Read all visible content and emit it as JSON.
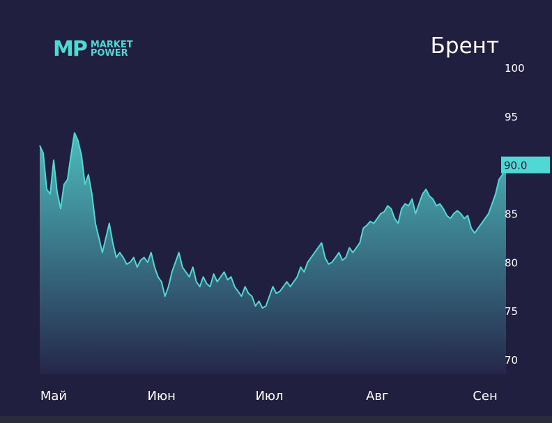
{
  "logo": {
    "mark": "MP",
    "line1": "MARKET",
    "line2": "POWER"
  },
  "colors": {
    "background": "#211f3f",
    "accent": "#4fd8d4",
    "fill_top": "#4ec3c2",
    "fill_bottom": "#25264a",
    "label_badge_text": "#1b1d3a",
    "tick_text": "#ffffff"
  },
  "chart_data": {
    "type": "area",
    "title": "Брент",
    "xlabel": "",
    "ylabel": "",
    "ylim": [
      68.5,
      100
    ],
    "yticks": [
      70,
      75,
      80,
      85,
      90,
      95,
      100
    ],
    "ytick_labels": [
      "70",
      "75",
      "80",
      "85",
      "90",
      "95",
      "100"
    ],
    "xticks": [
      {
        "label": "Май",
        "at": 4
      },
      {
        "label": "Июн",
        "at": 35
      },
      {
        "label": "Июл",
        "at": 66
      },
      {
        "label": "Авг",
        "at": 97
      },
      {
        "label": "Сен",
        "at": 128
      }
    ],
    "x_domain": [
      0,
      132
    ],
    "last_value_label": "90.0",
    "grid": false,
    "legend": "none",
    "series": [
      {
        "values": [
          92.0,
          91.2,
          87.5,
          87.0,
          90.5,
          87.2,
          85.5,
          88.0,
          88.5,
          91.0,
          93.3,
          92.5,
          91.0,
          88.0,
          89.0,
          87.0,
          84.0,
          82.5,
          81.0,
          82.5,
          84.0,
          82.0,
          80.5,
          81.0,
          80.5,
          79.8,
          80.0,
          80.5,
          79.5,
          80.2,
          80.5,
          80.0,
          81.0,
          79.5,
          78.5,
          78.0,
          76.5,
          77.5,
          79.0,
          80.0,
          81.0,
          79.5,
          79.0,
          78.5,
          79.5,
          78.0,
          77.5,
          78.5,
          77.8,
          77.5,
          78.8,
          78.0,
          78.5,
          79.0,
          78.2,
          78.5,
          77.5,
          77.0,
          76.5,
          77.5,
          76.8,
          76.5,
          75.5,
          76.0,
          75.3,
          75.5,
          76.5,
          77.5,
          76.8,
          77.0,
          77.5,
          78.0,
          77.5,
          78.0,
          78.5,
          79.5,
          79.0,
          80.0,
          80.5,
          81.0,
          81.5,
          82.0,
          80.5,
          79.8,
          80.0,
          80.5,
          81.0,
          80.2,
          80.5,
          81.5,
          81.0,
          81.5,
          82.0,
          83.5,
          83.8,
          84.2,
          84.0,
          84.5,
          85.0,
          85.2,
          85.8,
          85.5,
          84.5,
          84.0,
          85.5,
          86.0,
          85.8,
          86.5,
          85.0,
          86.0,
          87.0,
          87.5,
          86.8,
          86.5,
          85.8,
          86.0,
          85.5,
          84.8,
          84.5,
          85.0,
          85.3,
          85.0,
          84.5,
          84.8,
          83.5,
          83.0,
          83.5,
          84.0,
          84.5,
          85.0,
          86.0,
          87.0,
          88.5,
          89.0,
          90.0
        ]
      }
    ]
  }
}
